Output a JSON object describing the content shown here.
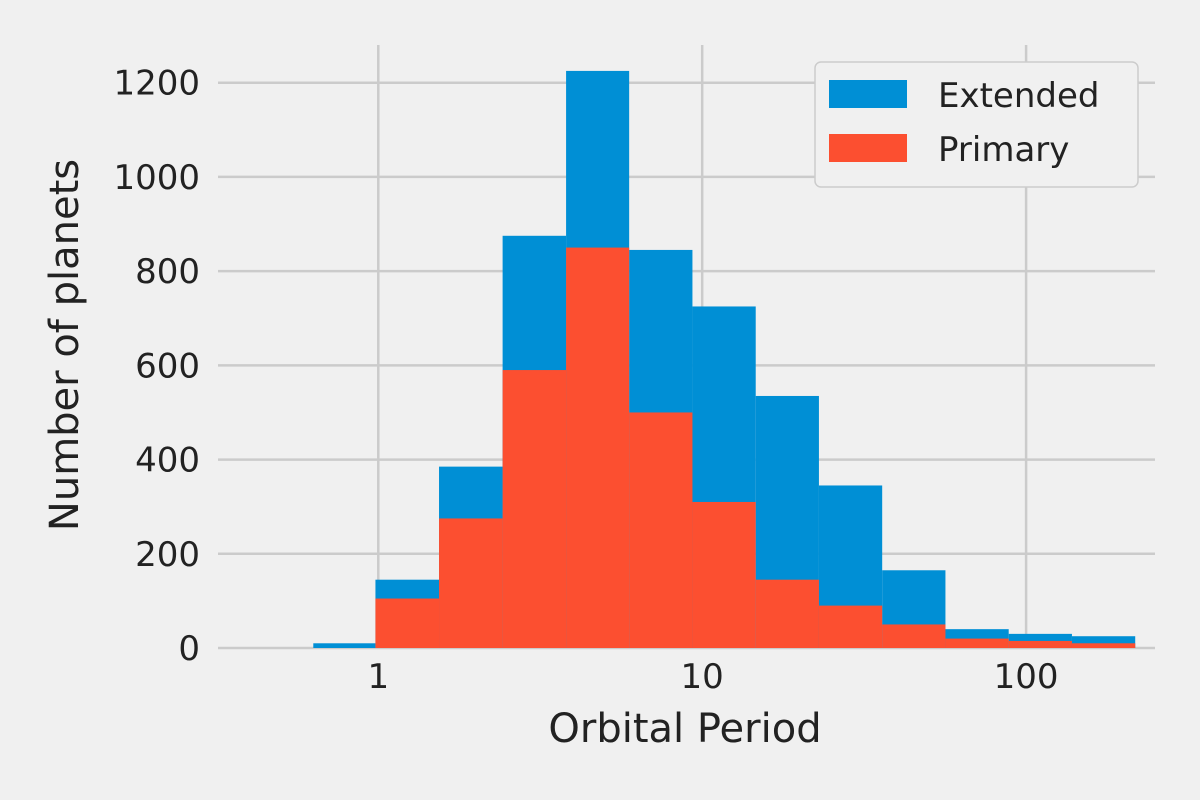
{
  "chart_data": {
    "type": "bar",
    "title": "",
    "xlabel": "Orbital Period",
    "ylabel": "Number of planets",
    "x_scale": "log",
    "xlim": [
      0.32,
      250
    ],
    "ylim": [
      0,
      1280
    ],
    "x_ticks": [
      1,
      10,
      100
    ],
    "x_tick_labels": [
      "1",
      "10",
      "100"
    ],
    "y_ticks": [
      0,
      200,
      400,
      600,
      800,
      1000,
      1200
    ],
    "y_tick_labels": [
      "0",
      "200",
      "400",
      "600",
      "800",
      "1000",
      "1200"
    ],
    "bin_edges": [
      0.63,
      0.98,
      1.54,
      2.42,
      3.8,
      5.95,
      9.33,
      14.63,
      22.93,
      35.95,
      56.36,
      88.36,
      138.52,
      217.2
    ],
    "series": [
      {
        "name": "Extended",
        "color": "#008fd5",
        "values": [
          10,
          145,
          385,
          875,
          1225,
          845,
          725,
          535,
          345,
          165,
          40,
          30,
          25
        ]
      },
      {
        "name": "Primary",
        "color": "#fc4f30",
        "values": [
          0,
          105,
          275,
          590,
          850,
          500,
          310,
          145,
          90,
          50,
          20,
          15,
          10
        ]
      }
    ],
    "grid": true,
    "legend_position": "top-right",
    "background": "#f0f0f0",
    "grid_color": "#cbcbcb"
  }
}
